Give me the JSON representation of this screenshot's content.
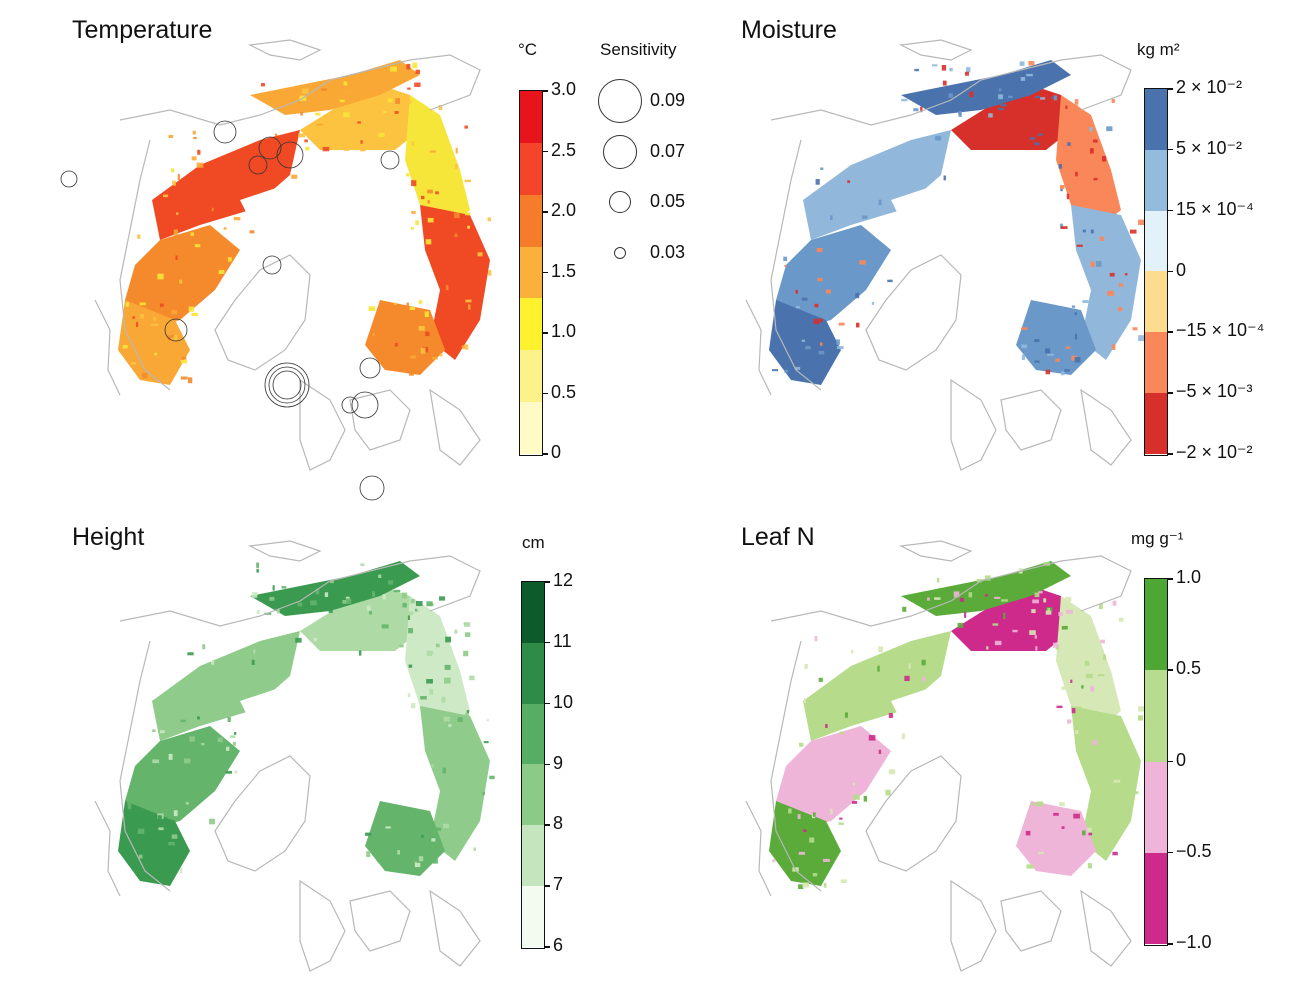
{
  "figure": {
    "panels": [
      {
        "id": "temperature",
        "title": "Temperature",
        "unit": "°C",
        "ticks": [
          "3.0",
          "2.5",
          "2.0",
          "1.5",
          "1.0",
          "0.5",
          "0"
        ],
        "colors": [
          "#e8141c",
          "#f4452a",
          "#f57d2a",
          "#fbb03b",
          "#fef12e",
          "#fdf18a",
          "#fffac6"
        ],
        "land_colors": [
          "#f04a24",
          "#f58a2c",
          "#f9a836",
          "#fbc340",
          "#f7e63a"
        ],
        "sensitivity": {
          "title": "Sensitivity",
          "values": [
            "0.09",
            "0.07",
            "0.05",
            "0.03"
          ]
        }
      },
      {
        "id": "moisture",
        "title": "Moisture",
        "unit": "kg m²",
        "ticks": [
          "2 × 10⁻²",
          "5 × 10⁻²",
          "15 × 10⁻⁴",
          "0",
          "−15 × 10⁻⁴",
          "−5 × 10⁻³",
          "−2 × 10⁻²"
        ],
        "colors": [
          "#4a72ad",
          "#93bcdc",
          "#e2f2f8",
          "#fddc90",
          "#f9875a",
          "#d7302a"
        ],
        "land_colors": [
          "#91b8da",
          "#6a98c8",
          "#4a72ad",
          "#d7302a",
          "#f9875a"
        ]
      },
      {
        "id": "height",
        "title": "Height",
        "unit": "cm",
        "ticks": [
          "12",
          "11",
          "10",
          "9",
          "8",
          "7",
          "6"
        ],
        "colors": [
          "#0d5a2b",
          "#2f8c48",
          "#57ad63",
          "#8ccb87",
          "#c4e5bd",
          "#f3faf0"
        ],
        "land_colors": [
          "#8fcb8a",
          "#64b46c",
          "#3a9a50",
          "#aedba5",
          "#cde9c6"
        ]
      },
      {
        "id": "leafn",
        "title": "Leaf N",
        "unit": "mg g⁻¹",
        "ticks": [
          "1.0",
          "0.5",
          "0",
          "−0.5",
          "−1.0"
        ],
        "colors": [
          "#4ea634",
          "#b7dc8d",
          "#efb5d8",
          "#cd2a8b"
        ],
        "land_colors": [
          "#b5db8b",
          "#efb5d8",
          "#5aab3a",
          "#cd2a8b",
          "#d6e8b5"
        ]
      }
    ]
  }
}
